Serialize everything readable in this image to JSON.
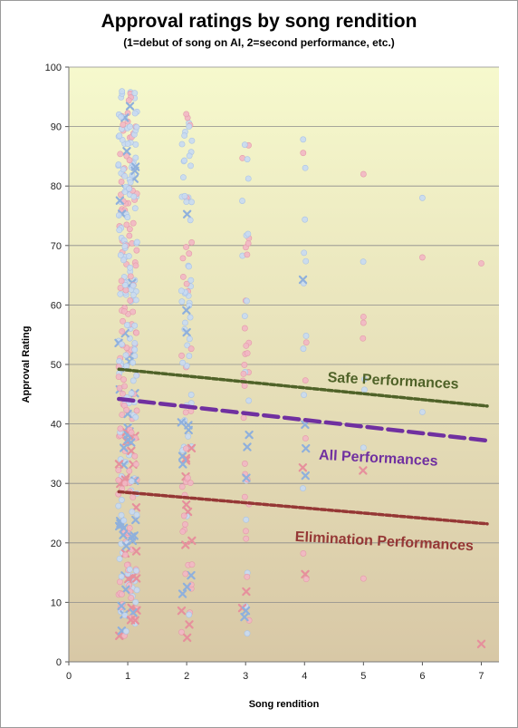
{
  "chart_data": {
    "type": "scatter",
    "title": "Approval ratings by song rendition",
    "subtitle": "(1=debut of song on AI, 2=second performance, etc.)",
    "xlabel": "Song rendition",
    "ylabel": "Approval Rating",
    "xlim": [
      0,
      7.3
    ],
    "ylim": [
      0,
      100
    ],
    "xticks": [
      "0",
      "1",
      "2",
      "3",
      "4",
      "5",
      "6",
      "7"
    ],
    "yticks": [
      "0",
      "10",
      "20",
      "30",
      "40",
      "50",
      "60",
      "70",
      "80",
      "90",
      "100"
    ],
    "grid": true,
    "background_gradient": [
      "#f6f9cd",
      "#d8c8a6"
    ],
    "colors": {
      "safe_point": "#c8daf2",
      "safe_point_edge": "#aac3e6",
      "elim_point": "#f2b7c4",
      "elim_point_edge": "#e59aaa",
      "safe_cross": "#8fb0dc",
      "elim_cross": "#e6909c",
      "safe_trend": "#4f6228",
      "all_trend": "#7030a0",
      "elim_trend": "#953735"
    },
    "point_series": [
      {
        "rendition": 1,
        "y_min": 4,
        "y_max": 96,
        "count": 340,
        "spread": 0.16
      },
      {
        "rendition": 2,
        "y_min": 4,
        "y_max": 94,
        "count": 105,
        "spread": 0.09
      },
      {
        "rendition": 3,
        "y_min": 4,
        "y_max": 90,
        "count": 50,
        "spread": 0.06
      },
      {
        "rendition": 4,
        "y_min": 12,
        "y_max": 91,
        "count": 22,
        "spread": 0.03
      },
      {
        "rendition": 5,
        "y_min": 14,
        "y_max": 82,
        "count": 5,
        "spread": 0.02
      }
    ],
    "extra_points": [
      {
        "x": 6,
        "y": 78,
        "kind": "safe"
      },
      {
        "x": 6,
        "y": 68,
        "kind": "elim"
      },
      {
        "x": 6,
        "y": 42,
        "kind": "safe"
      },
      {
        "x": 7,
        "y": 67,
        "kind": "elim"
      },
      {
        "x": 7,
        "y": 3,
        "kind": "elim-cross"
      },
      {
        "x": 5,
        "y": 58,
        "kind": "elim"
      },
      {
        "x": 5,
        "y": 57,
        "kind": "elim"
      },
      {
        "x": 5,
        "y": 82,
        "kind": "elim"
      },
      {
        "x": 5,
        "y": 36,
        "kind": "safe"
      },
      {
        "x": 5,
        "y": 14,
        "kind": "elim"
      }
    ],
    "trendlines": [
      {
        "name": "Safe Performances",
        "x": [
          0.85,
          7.1
        ],
        "y": [
          49.2,
          43.0
        ],
        "dash": "5,3",
        "width": 3.5
      },
      {
        "name": "All Performances",
        "x": [
          0.85,
          7.1
        ],
        "y": [
          44.2,
          37.2
        ],
        "dash": "16,7",
        "width": 4.5
      },
      {
        "name": "Elimination Performances",
        "x": [
          0.85,
          7.1
        ],
        "y": [
          28.6,
          23.2
        ],
        "dash": "5,3",
        "width": 3.5
      }
    ],
    "annotations": [
      {
        "text": "Safe Performances",
        "x": 5.5,
        "y": 46.5,
        "rotate": 3,
        "series": "safe"
      },
      {
        "text": "All Performances",
        "x": 5.25,
        "y": 33.5,
        "rotate": 3,
        "series": "all"
      },
      {
        "text": "Elimination Performances",
        "x": 5.35,
        "y": 19.5,
        "rotate": 3,
        "series": "elim"
      }
    ]
  }
}
